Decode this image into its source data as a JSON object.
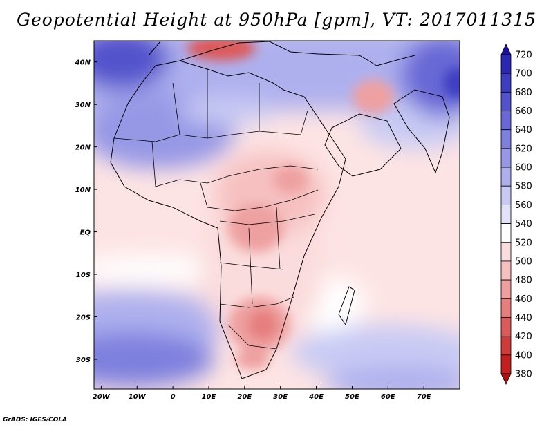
{
  "title": "Geopotential Height at 950hPa [gpm], VT: 2017011315",
  "footer": "GrADS: IGES/COLA",
  "map": {
    "lon_range": [
      -22,
      80
    ],
    "lat_range": [
      -37,
      45
    ],
    "lon_ticks": [
      {
        "value": -20,
        "label": "20W"
      },
      {
        "value": -10,
        "label": "10W"
      },
      {
        "value": 0,
        "label": "0"
      },
      {
        "value": 10,
        "label": "10E"
      },
      {
        "value": 20,
        "label": "20E"
      },
      {
        "value": 30,
        "label": "30E"
      },
      {
        "value": 40,
        "label": "40E"
      },
      {
        "value": 50,
        "label": "50E"
      },
      {
        "value": 60,
        "label": "60E"
      },
      {
        "value": 70,
        "label": "70E"
      }
    ],
    "lat_ticks": [
      {
        "value": 40,
        "label": "40N"
      },
      {
        "value": 30,
        "label": "30N"
      },
      {
        "value": 20,
        "label": "20N"
      },
      {
        "value": 10,
        "label": "10N"
      },
      {
        "value": 0,
        "label": "EQ"
      },
      {
        "value": -10,
        "label": "10S"
      },
      {
        "value": -20,
        "label": "20S"
      },
      {
        "value": -30,
        "label": "30S"
      }
    ]
  },
  "colorbar": {
    "levels": [
      "720",
      "700",
      "680",
      "660",
      "640",
      "620",
      "600",
      "580",
      "560",
      "540",
      "520",
      "500",
      "480",
      "460",
      "440",
      "420",
      "400",
      "380"
    ],
    "colors": [
      "#1a10a0",
      "#2c26b4",
      "#3e3cc2",
      "#5252cc",
      "#6868d6",
      "#7e80de",
      "#9698e6",
      "#aeb0ee",
      "#c8caf4",
      "#e2e3f8",
      "#ffffff",
      "#fbdcdc",
      "#f6c0c0",
      "#eea0a0",
      "#e67e7e",
      "#dc5a5a",
      "#d03a3a",
      "#c41e1e",
      "#b01010"
    ]
  }
}
